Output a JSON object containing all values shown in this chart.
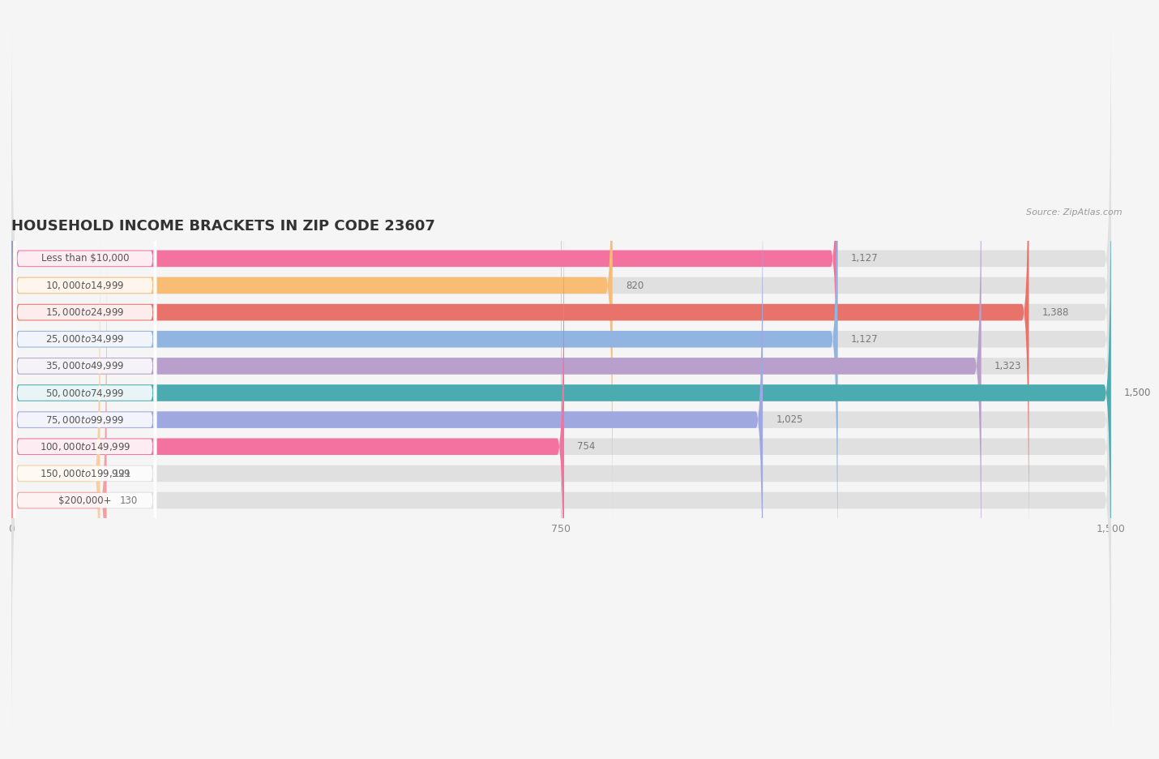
{
  "title": "HOUSEHOLD INCOME BRACKETS IN ZIP CODE 23607",
  "source": "Source: ZipAtlas.com",
  "categories": [
    "Less than $10,000",
    "$10,000 to $14,999",
    "$15,000 to $24,999",
    "$25,000 to $34,999",
    "$35,000 to $49,999",
    "$50,000 to $74,999",
    "$75,000 to $99,999",
    "$100,000 to $149,999",
    "$150,000 to $199,999",
    "$200,000+"
  ],
  "values": [
    1127,
    820,
    1388,
    1127,
    1323,
    1500,
    1025,
    754,
    121,
    130
  ],
  "bar_colors": [
    "#F472A0",
    "#F9BC74",
    "#E8736A",
    "#92B4E0",
    "#B89FCC",
    "#4AABB0",
    "#A0A8E0",
    "#F472A0",
    "#F9CFA0",
    "#F0A0A0"
  ],
  "background_color": "#f5f5f5",
  "bar_bg_color": "#e0e0e0",
  "xlim": [
    0,
    1500
  ],
  "xticks": [
    0,
    750,
    1500
  ],
  "title_fontsize": 13,
  "label_fontsize": 8.5,
  "value_fontsize": 8.5
}
